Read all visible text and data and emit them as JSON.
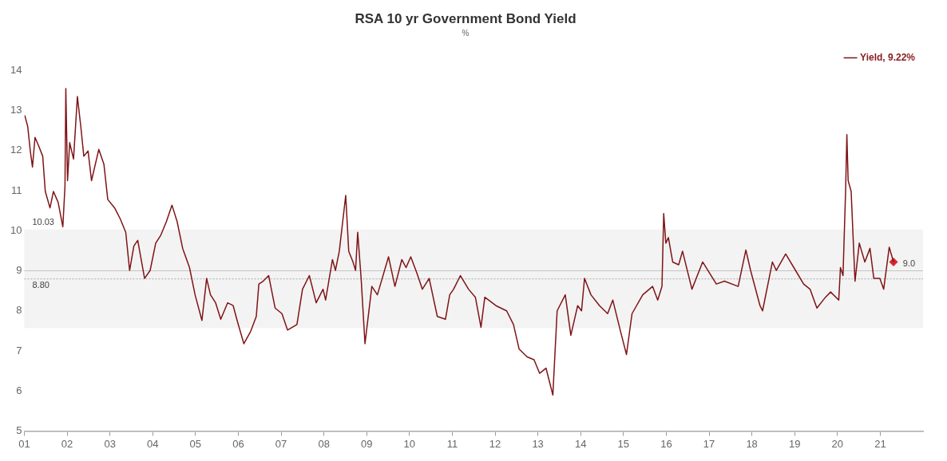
{
  "chart_data": {
    "type": "line",
    "title": "RSA 10 yr Government Bond Yield",
    "subtitle": "%",
    "xlim": [
      2001,
      2022
    ],
    "xticks": [
      {
        "value": 2001,
        "label": "01"
      },
      {
        "value": 2002,
        "label": "02"
      },
      {
        "value": 2003,
        "label": "03"
      },
      {
        "value": 2004,
        "label": "04"
      },
      {
        "value": 2005,
        "label": "05"
      },
      {
        "value": 2006,
        "label": "06"
      },
      {
        "value": 2007,
        "label": "07"
      },
      {
        "value": 2008,
        "label": "08"
      },
      {
        "value": 2009,
        "label": "09"
      },
      {
        "value": 2010,
        "label": "10"
      },
      {
        "value": 2011,
        "label": "11"
      },
      {
        "value": 2012,
        "label": "12"
      },
      {
        "value": 2013,
        "label": "13"
      },
      {
        "value": 2014,
        "label": "14"
      },
      {
        "value": 2015,
        "label": "15"
      },
      {
        "value": 2016,
        "label": "16"
      },
      {
        "value": 2017,
        "label": "17"
      },
      {
        "value": 2018,
        "label": "18"
      },
      {
        "value": 2019,
        "label": "19"
      },
      {
        "value": 2020,
        "label": "20"
      },
      {
        "value": 2021,
        "label": "21"
      }
    ],
    "ylim": [
      5,
      14
    ],
    "yticks": [
      5,
      6,
      7,
      8,
      9,
      10,
      11,
      12,
      13,
      14
    ],
    "grid": false,
    "legend": "top right",
    "marker": "none",
    "line_style": "solid",
    "bands": [
      {
        "axis": "y",
        "from": 7.57,
        "to": 10.03,
        "label": "10.03",
        "color": "#f3f3f3"
      }
    ],
    "ref_lines": [
      {
        "axis": "y",
        "value": 8.8,
        "label": "8.80",
        "color": "#b8b8b8",
        "line_style": "dotted"
      },
      {
        "axis": "y",
        "value": 9.0,
        "label": "9.0",
        "color": "#c4c4c4",
        "line_style": "solid"
      }
    ],
    "series": [
      {
        "name": "Yield, 9.22%",
        "color": "#7f1417",
        "x": [
          2001.01,
          2001.08,
          2001.14,
          2001.19,
          2001.25,
          2001.33,
          2001.43,
          2001.49,
          2001.6,
          2001.68,
          2001.79,
          2001.9,
          2001.95,
          2001.97,
          2002.01,
          2002.06,
          2002.15,
          2002.24,
          2002.32,
          2002.39,
          2002.49,
          2002.57,
          2002.74,
          2002.86,
          2002.95,
          2003.11,
          2003.24,
          2003.37,
          2003.46,
          2003.56,
          2003.65,
          2003.81,
          2003.94,
          2004.07,
          2004.19,
          2004.32,
          2004.45,
          2004.57,
          2004.7,
          2004.86,
          2004.99,
          2005.15,
          2005.26,
          2005.35,
          2005.47,
          2005.59,
          2005.75,
          2005.88,
          2005.98,
          2006.13,
          2006.29,
          2006.42,
          2006.48,
          2006.58,
          2006.71,
          2006.86,
          2007.02,
          2007.15,
          2007.37,
          2007.5,
          2007.66,
          2007.82,
          2007.98,
          2008.04,
          2008.2,
          2008.27,
          2008.36,
          2008.51,
          2008.58,
          2008.68,
          2008.74,
          2008.79,
          2008.87,
          2008.96,
          2009.12,
          2009.25,
          2009.51,
          2009.66,
          2009.82,
          2009.92,
          2010.03,
          2010.17,
          2010.3,
          2010.46,
          2010.65,
          2010.84,
          2010.94,
          2011.03,
          2011.19,
          2011.38,
          2011.54,
          2011.67,
          2011.76,
          2012.02,
          2012.27,
          2012.43,
          2012.56,
          2012.75,
          2012.91,
          2013.04,
          2013.19,
          2013.35,
          2013.45,
          2013.64,
          2013.77,
          2013.93,
          2014.02,
          2014.09,
          2014.24,
          2014.44,
          2014.63,
          2014.75,
          2014.94,
          2015.07,
          2015.2,
          2015.45,
          2015.68,
          2015.8,
          2015.9,
          2015.94,
          2015.99,
          2016.05,
          2016.15,
          2016.29,
          2016.38,
          2016.6,
          2016.85,
          2017.17,
          2017.36,
          2017.68,
          2017.86,
          2017.97,
          2018.19,
          2018.25,
          2018.48,
          2018.57,
          2018.79,
          2019.02,
          2019.21,
          2019.36,
          2019.52,
          2019.72,
          2019.84,
          2020.03,
          2020.07,
          2020.13,
          2020.19,
          2020.22,
          2020.25,
          2020.32,
          2020.41,
          2020.51,
          2020.64,
          2020.76,
          2020.85,
          2020.99,
          2021.08,
          2021.21,
          2021.31
        ],
        "values": [
          12.88,
          12.6,
          11.99,
          11.59,
          12.33,
          12.13,
          11.86,
          10.98,
          10.57,
          10.98,
          10.71,
          10.1,
          11.11,
          13.55,
          11.25,
          12.2,
          11.79,
          13.35,
          12.6,
          11.86,
          11.99,
          11.25,
          12.03,
          11.66,
          10.78,
          10.57,
          10.3,
          9.96,
          9.01,
          9.62,
          9.76,
          8.81,
          9.01,
          9.69,
          9.89,
          10.23,
          10.64,
          10.23,
          9.56,
          9.08,
          8.4,
          7.76,
          8.81,
          8.4,
          8.2,
          7.79,
          8.2,
          8.13,
          7.73,
          7.18,
          7.49,
          7.86,
          8.67,
          8.74,
          8.88,
          8.07,
          7.93,
          7.52,
          7.66,
          8.54,
          8.88,
          8.2,
          8.54,
          8.27,
          9.28,
          9.01,
          9.49,
          10.88,
          9.49,
          9.22,
          9.01,
          9.96,
          8.81,
          7.18,
          8.61,
          8.4,
          9.35,
          8.61,
          9.28,
          9.08,
          9.35,
          8.95,
          8.54,
          8.81,
          7.86,
          7.79,
          8.4,
          8.54,
          8.88,
          8.54,
          8.34,
          7.59,
          8.34,
          8.13,
          8.0,
          7.66,
          7.05,
          6.85,
          6.78,
          6.44,
          6.57,
          5.9,
          8.0,
          8.4,
          7.39,
          8.13,
          8.0,
          8.81,
          8.4,
          8.13,
          7.93,
          8.27,
          7.45,
          6.91,
          7.93,
          8.4,
          8.61,
          8.27,
          8.61,
          10.43,
          9.69,
          9.83,
          9.22,
          9.15,
          9.49,
          8.54,
          9.22,
          8.67,
          8.74,
          8.61,
          9.52,
          9.01,
          8.13,
          8.0,
          9.22,
          9.01,
          9.42,
          9.01,
          8.67,
          8.54,
          8.07,
          8.34,
          8.47,
          8.27,
          9.08,
          8.88,
          10.98,
          12.4,
          11.25,
          10.98,
          8.74,
          9.69,
          9.22,
          9.56,
          8.81,
          8.81,
          8.54,
          9.59,
          9.22
        ]
      },
      {
        "type": "scatter",
        "color": "#d8262d",
        "marker": "diamond",
        "x": [
          2021.31
        ],
        "values": [
          9.22
        ]
      }
    ]
  }
}
